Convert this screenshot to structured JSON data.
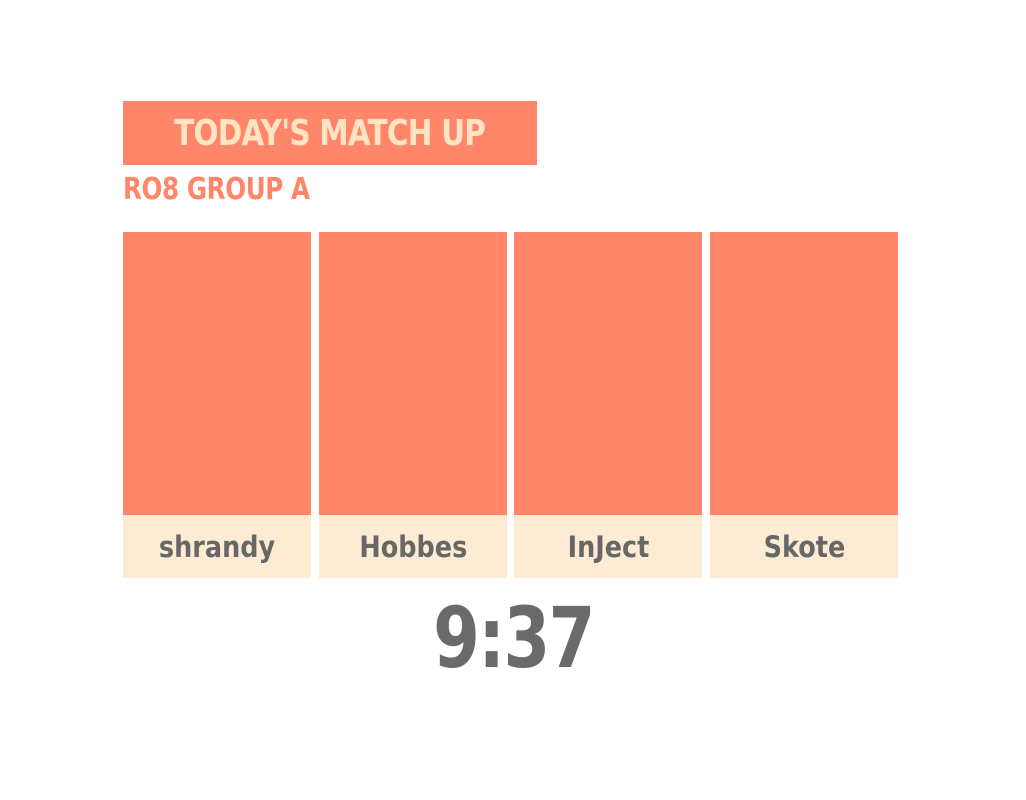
{
  "header": {
    "title": "TODAY'S MATCH UP",
    "subtitle": "RO8 GROUP A"
  },
  "players": [
    {
      "name": "shrandy"
    },
    {
      "name": "Hobbes"
    },
    {
      "name": "InJect"
    },
    {
      "name": "Skote"
    }
  ],
  "timer": "9:37",
  "colors": {
    "accent": "#ff8669",
    "name_bg": "#fdebd3",
    "title_text": "#ffe4c4",
    "dark_text": "#676767"
  }
}
